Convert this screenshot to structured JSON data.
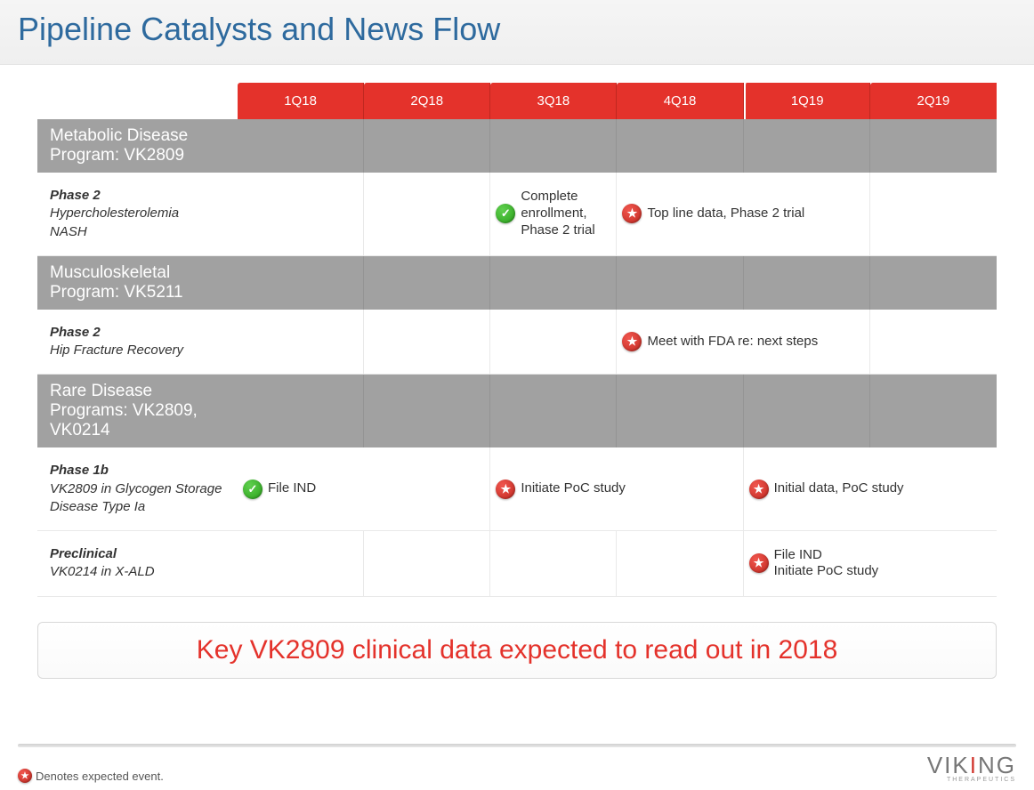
{
  "title": "Pipeline Catalysts and News Flow",
  "colors": {
    "title": "#2e6a9e",
    "header_bg": "#e4322b",
    "section_bg": "#a1a1a1",
    "callout_text": "#e4322b",
    "icon_green": "#2aa11a",
    "icon_red": "#c22820"
  },
  "quarters": [
    "1Q18",
    "2Q18",
    "3Q18",
    "4Q18",
    "1Q19",
    "2Q19"
  ],
  "year_break_index": 4,
  "sections": [
    {
      "title": "Metabolic Disease Program: VK2809",
      "rows": [
        {
          "phase": "Phase 2",
          "indications": [
            "Hypercholesterolemia",
            "NASH"
          ],
          "events": [
            {
              "start": 2,
              "span": 1,
              "icon": "green",
              "text": "Complete enrollment, Phase 2 trial"
            },
            {
              "start": 3,
              "span": 2,
              "icon": "red",
              "text": "Top line data, Phase 2 trial"
            }
          ]
        }
      ]
    },
    {
      "title": "Musculoskeletal Program: VK5211",
      "rows": [
        {
          "phase": "Phase 2",
          "indications": [
            "Hip Fracture Recovery"
          ],
          "events": [
            {
              "start": 3,
              "span": 2,
              "icon": "red",
              "text": "Meet with FDA re: next steps"
            }
          ]
        }
      ]
    },
    {
      "title": "Rare Disease Programs: VK2809, VK0214",
      "rows": [
        {
          "phase": "Phase 1b",
          "indications": [
            "VK2809 in Glycogen Storage Disease Type Ia"
          ],
          "events": [
            {
              "start": 0,
              "span": 2,
              "icon": "green",
              "text": "File IND"
            },
            {
              "start": 2,
              "span": 2,
              "icon": "red",
              "text": "Initiate PoC study"
            },
            {
              "start": 4,
              "span": 2,
              "icon": "red",
              "text": "Initial data, PoC study"
            }
          ]
        },
        {
          "phase": "Preclinical",
          "indications": [
            "VK0214 in X-ALD"
          ],
          "events": [
            {
              "start": 4,
              "span": 2,
              "icon": "red",
              "text": "File IND\nInitiate PoC study"
            }
          ]
        }
      ]
    }
  ],
  "callout": "Key VK2809 clinical data expected to read out in 2018",
  "legend": "Denotes expected event.",
  "logo": {
    "brand_pre": "VIK",
    "brand_accent": "I",
    "brand_post": "NG",
    "sub": "THERAPEUTICS"
  }
}
